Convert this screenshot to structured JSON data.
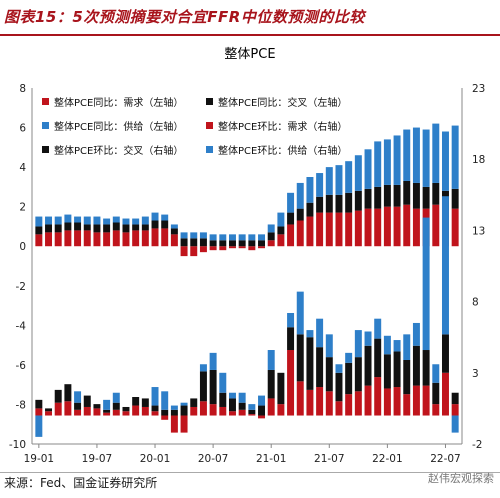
{
  "figure_title": "图表15：5次预测摘要对合宜FFR中位数预测的比较",
  "source": "来源：Fed、国金证券研究所",
  "watermark": "赵伟宏观探索",
  "colors": {
    "red": "#c0141c",
    "black": "#111111",
    "blue": "#2e7fc9",
    "title_red": "#a8141c"
  },
  "chart_data": {
    "type": "bar",
    "title": "整体PCE",
    "x_tick_labels": [
      "19-01",
      "19-07",
      "20-01",
      "20-07",
      "21-01",
      "21-07",
      "22-01",
      "22-07"
    ],
    "grid": false,
    "legend_position": "top-left",
    "left_axis": {
      "ylim": [
        -10,
        8
      ],
      "ticks": [
        -10,
        -8,
        -6,
        -4,
        -2,
        0,
        2,
        4,
        6,
        8
      ]
    },
    "right_axis": {
      "ylim": [
        -2,
        23
      ],
      "ticks": [
        -2,
        3,
        8,
        13,
        18,
        23
      ]
    },
    "categories": [
      "19-01",
      "19-02",
      "19-03",
      "19-04",
      "19-05",
      "19-06",
      "19-07",
      "19-08",
      "19-09",
      "19-10",
      "19-11",
      "19-12",
      "20-01",
      "20-02",
      "20-03",
      "20-04",
      "20-05",
      "20-06",
      "20-07",
      "20-08",
      "20-09",
      "20-10",
      "20-11",
      "20-12",
      "21-01",
      "21-02",
      "21-03",
      "21-04",
      "21-05",
      "21-06",
      "21-07",
      "21-08",
      "21-09",
      "21-10",
      "21-11",
      "21-12",
      "22-01",
      "22-02",
      "22-03",
      "22-04",
      "22-05",
      "22-06",
      "22-07",
      "22-08"
    ],
    "series": [
      {
        "name": "整体PCE同比：需求（左轴）",
        "axis": "left",
        "stack": "left",
        "values": [
          0.6,
          0.7,
          0.7,
          0.8,
          0.8,
          0.8,
          0.7,
          0.7,
          0.8,
          0.7,
          0.8,
          0.8,
          0.9,
          0.9,
          0.6,
          -0.5,
          -0.5,
          -0.3,
          -0.2,
          -0.2,
          -0.1,
          -0.1,
          -0.2,
          -0.1,
          0.3,
          0.6,
          1.1,
          1.3,
          1.5,
          1.7,
          1.7,
          1.7,
          1.7,
          1.8,
          1.9,
          1.9,
          2.0,
          2.0,
          2.1,
          1.9,
          1.9,
          2.1,
          1.8,
          1.9
        ]
      },
      {
        "name": "整体PCE同比：交叉（左轴）",
        "axis": "left",
        "stack": "left",
        "values": [
          0.4,
          0.4,
          0.4,
          0.4,
          0.4,
          0.3,
          0.4,
          0.4,
          0.4,
          0.4,
          0.3,
          0.3,
          0.4,
          0.4,
          0.3,
          0.4,
          0.4,
          0.4,
          0.3,
          0.3,
          0.3,
          0.3,
          0.3,
          0.3,
          0.4,
          0.4,
          0.6,
          0.6,
          0.7,
          0.8,
          0.9,
          0.9,
          1.0,
          1.0,
          1.0,
          1.1,
          1.1,
          1.1,
          1.2,
          1.3,
          1.1,
          1.1,
          1.0,
          1.0
        ]
      },
      {
        "name": "整体PCE同比：供给（左轴）",
        "axis": "left",
        "stack": "left",
        "values": [
          0.5,
          0.4,
          0.4,
          0.4,
          0.3,
          0.4,
          0.4,
          0.3,
          0.3,
          0.3,
          0.3,
          0.4,
          0.4,
          0.3,
          0.2,
          0.3,
          0.3,
          0.3,
          0.3,
          0.3,
          0.3,
          0.3,
          0.3,
          0.3,
          0.4,
          0.7,
          1.0,
          1.3,
          1.3,
          1.2,
          1.4,
          1.5,
          1.6,
          1.8,
          2.0,
          2.3,
          2.3,
          2.5,
          2.6,
          2.8,
          2.9,
          3.0,
          3.0,
          3.2
        ]
      },
      {
        "name": "整体PCE环比：需求（右轴）",
        "axis": "right",
        "stack": "right",
        "values": [
          0.5,
          0.3,
          0.9,
          1.0,
          0.4,
          0.6,
          0.5,
          0.2,
          0.4,
          0.3,
          0.7,
          0.6,
          0.3,
          -0.3,
          -1.2,
          -1.2,
          0.6,
          1.0,
          0.8,
          0.6,
          0.3,
          0.4,
          0.1,
          -0.2,
          1.2,
          0.8,
          4.6,
          2.4,
          1.8,
          2.0,
          1.7,
          1.0,
          1.5,
          1.7,
          2.1,
          2.7,
          1.9,
          2.0,
          1.5,
          2.1,
          2.1,
          0.8,
          3.0,
          0.8
        ]
      },
      {
        "name": "整体PCE环比：交叉（右轴）",
        "axis": "right",
        "stack": "right",
        "values": [
          0.6,
          0.2,
          0.9,
          1.2,
          0.5,
          0.8,
          0.3,
          0.2,
          0.5,
          0.3,
          0.6,
          0.6,
          0.4,
          0.4,
          0.4,
          0.7,
          0.6,
          2.1,
          2.4,
          1.0,
          0.9,
          0.5,
          0.3,
          0.7,
          2.0,
          2.2,
          1.6,
          3.3,
          3.7,
          2.8,
          2.4,
          2.0,
          2.2,
          2.4,
          2.8,
          2.7,
          2.4,
          2.5,
          2.4,
          2.8,
          2.5,
          1.5,
          2.7,
          0.8
        ]
      },
      {
        "name": "整体PCE环比：供给（右轴）",
        "axis": "right",
        "stack": "right",
        "values": [
          -1.5,
          0.0,
          0.0,
          0.0,
          0.8,
          0.0,
          0.0,
          0.7,
          0.7,
          0.0,
          0.0,
          0.0,
          1.3,
          1.3,
          0.3,
          0.2,
          0.0,
          0.5,
          1.2,
          1.4,
          0.4,
          0.7,
          0.4,
          0.7,
          1.4,
          0.0,
          1.0,
          3.0,
          0.5,
          2.0,
          1.6,
          0.6,
          0.7,
          1.9,
          1.0,
          1.4,
          1.3,
          0.8,
          1.8,
          1.6,
          9.3,
          1.3,
          9.7,
          -1.2
        ]
      }
    ]
  }
}
